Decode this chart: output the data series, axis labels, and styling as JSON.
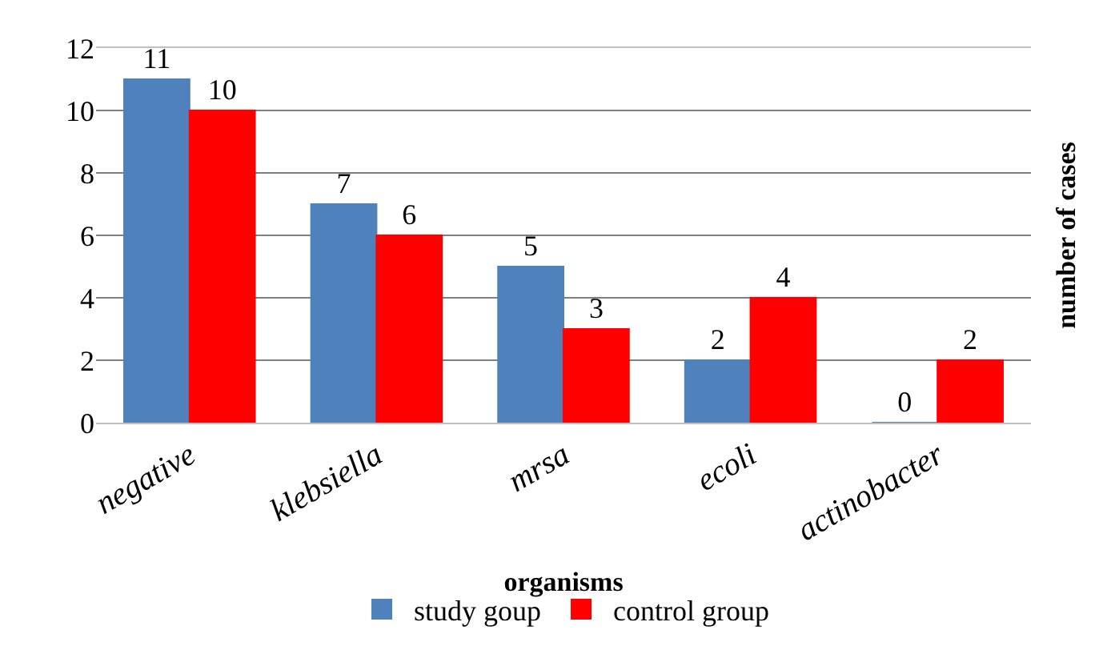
{
  "chart_data": {
    "type": "bar",
    "xlabel": "organisms",
    "ylabel": "number of cases",
    "categories": [
      "negative",
      "klebsiella",
      "mrsa",
      "ecoli",
      "actinobacter"
    ],
    "series": [
      {
        "name": "study goup",
        "color": "#4f81bd",
        "values": [
          11,
          7,
          5,
          2,
          0
        ]
      },
      {
        "name": "control group",
        "color": "#ff0000",
        "values": [
          10,
          6,
          3,
          4,
          2
        ]
      }
    ],
    "ylim": [
      0,
      12
    ],
    "yticks": [
      0,
      2,
      4,
      6,
      8,
      10,
      12
    ],
    "grid": "y",
    "data_labels": true,
    "legend": "bottom"
  }
}
